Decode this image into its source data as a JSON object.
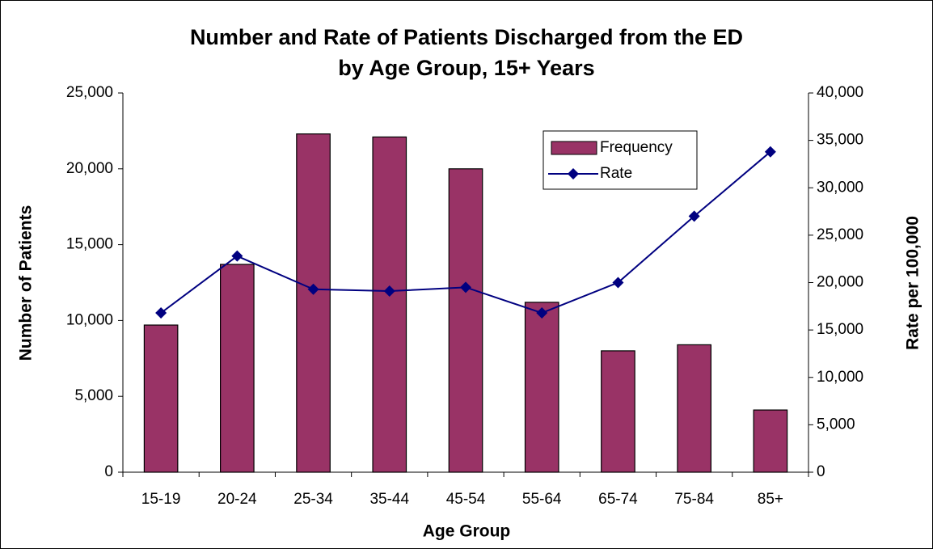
{
  "chart_data": {
    "type": "bar",
    "title": "Number and Rate of Patients Discharged from the ED",
    "subtitle": "by Age Group, 15+ Years",
    "x_label": "Age Group",
    "y_label": "Number of Patients",
    "y2_label": "Rate per 100,000",
    "categories": [
      "15-19",
      "20-24",
      "25-34",
      "35-44",
      "45-54",
      "55-64",
      "65-74",
      "75-84",
      "85+"
    ],
    "series": [
      {
        "name": "Frequency",
        "type": "bar",
        "color": "#993366",
        "values": [
          9700,
          13700,
          22300,
          22100,
          20000,
          11200,
          8000,
          8400,
          4100
        ]
      },
      {
        "name": "Rate",
        "type": "line",
        "axis": "y2",
        "color": "#000080",
        "values": [
          16800,
          22800,
          19300,
          19100,
          19500,
          16800,
          20000,
          27000,
          33800
        ]
      }
    ],
    "ylim": [
      0,
      25000
    ],
    "yticks": [
      0,
      {
        "value": 5000,
        "label": "5,000"
      },
      {
        "value": 10000,
        "label": "10,000"
      },
      {
        "value": 15000,
        "label": "15,000"
      },
      {
        "value": 20000,
        "label": "20,000"
      },
      {
        "value": 25000,
        "label": "25,000"
      }
    ],
    "y2lim": [
      0,
      40000
    ],
    "y2ticks": [
      0,
      {
        "value": 5000,
        "label": "5,000"
      },
      {
        "value": 10000,
        "label": "10,000"
      },
      {
        "value": 15000,
        "label": "15,000"
      },
      {
        "value": 20000,
        "label": "20,000"
      },
      {
        "value": 25000,
        "label": "25,000"
      },
      {
        "value": 30000,
        "label": "30,000"
      },
      {
        "value": 35000,
        "label": "35,000"
      },
      {
        "value": 40000,
        "label": "40,000"
      }
    ],
    "grid": false,
    "legend": "upper right"
  }
}
